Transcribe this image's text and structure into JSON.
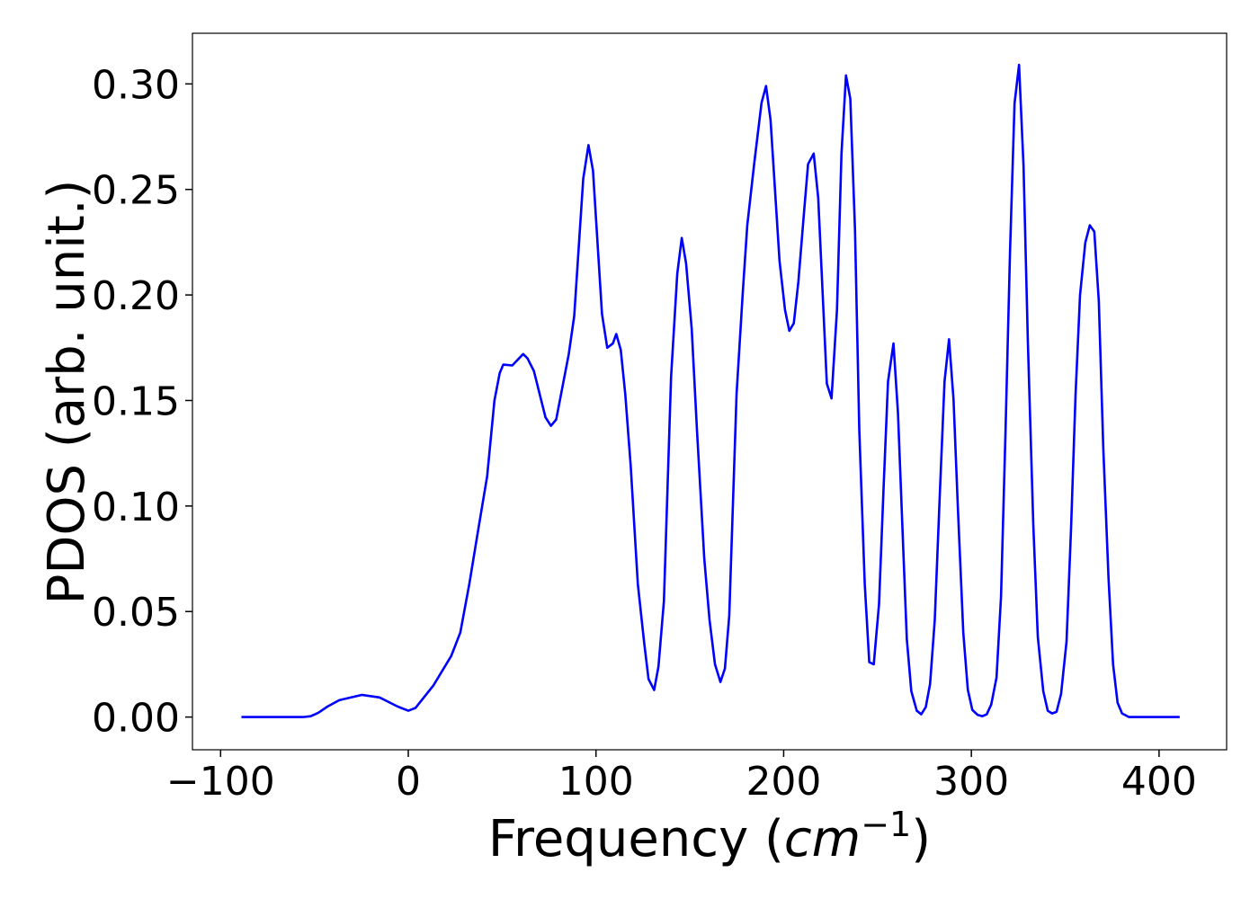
{
  "chart_data": {
    "type": "line",
    "x_label": {
      "text": "Frequency (",
      "unit": "cm",
      "exponent": "−1",
      "close": ")"
    },
    "y_label": "PDOS (arb. unit.)",
    "xlim": [
      -115,
      436
    ],
    "ylim": [
      -0.0155,
      0.324
    ],
    "xticks": [
      {
        "value": -100,
        "label": "−100"
      },
      0,
      100,
      200,
      300,
      400
    ],
    "yticks": [
      {
        "value": 0,
        "label": "0.00"
      },
      {
        "value": 0.05,
        "label": "0.05"
      },
      {
        "value": 0.1,
        "label": "0.10"
      },
      {
        "value": 0.15,
        "label": "0.15"
      },
      {
        "value": 0.2,
        "label": "0.20"
      },
      {
        "value": 0.25,
        "label": "0.25"
      },
      {
        "value": 0.3,
        "label": "0.30"
      }
    ],
    "grid": false,
    "series": [
      {
        "color": "#0000ff",
        "x": [
          -88.9,
          -56,
          -52,
          -48,
          -43,
          -36.8,
          -24.8,
          -15.3,
          -5.7,
          0,
          3.8,
          13.4,
          22.9,
          27.7,
          32.5,
          37.3,
          42,
          45.9,
          48.7,
          50.6,
          55.4,
          61.2,
          63.5,
          66.9,
          73.1,
          76,
          78.8,
          85.5,
          88.4,
          93.2,
          96,
          98.4,
          103.2,
          106,
          109,
          110.8,
          113.2,
          115.6,
          118.5,
          122.3,
          125.7,
          128,
          131,
          133.3,
          136.2,
          140,
          143.3,
          145.7,
          148,
          151,
          153.8,
          157.7,
          160.5,
          163.4,
          166.3,
          168.7,
          171,
          174.9,
          178.2,
          180.6,
          184.4,
          188.2,
          190.6,
          193,
          197.8,
          200.7,
          203,
          205.4,
          207.8,
          210.7,
          213,
          216,
          218.4,
          223,
          225.5,
          228.4,
          230.8,
          233.2,
          235.5,
          238,
          240.3,
          243.2,
          245.6,
          248,
          250.8,
          253.2,
          255.6,
          258.5,
          260.9,
          263.3,
          265.6,
          268,
          270.9,
          273.3,
          275.7,
          278,
          280.5,
          283.3,
          285.7,
          288.1,
          290.5,
          292.9,
          295.7,
          298.1,
          300.5,
          303.4,
          305.8,
          308.2,
          310.6,
          313.4,
          315.8,
          318.2,
          320.6,
          323,
          325.4,
          327.8,
          330.1,
          333,
          335.4,
          338.3,
          340.7,
          343,
          345.4,
          347.8,
          350.7,
          353.1,
          355.5,
          357.9,
          360.7,
          363.1,
          365.5,
          367.9,
          370.3,
          373.1,
          375.5,
          377.9,
          380.3,
          384,
          411
        ],
        "values": [
          0,
          0,
          0.0004,
          0.002,
          0.005,
          0.008,
          0.0105,
          0.0093,
          0.005,
          0.003,
          0.0043,
          0.015,
          0.029,
          0.04,
          0.063,
          0.089,
          0.114,
          0.15,
          0.163,
          0.167,
          0.1666,
          0.172,
          0.17,
          0.164,
          0.142,
          0.138,
          0.141,
          0.172,
          0.19,
          0.255,
          0.271,
          0.259,
          0.191,
          0.175,
          0.177,
          0.1815,
          0.174,
          0.153,
          0.119,
          0.063,
          0.035,
          0.018,
          0.0128,
          0.024,
          0.055,
          0.161,
          0.21,
          0.227,
          0.215,
          0.184,
          0.136,
          0.075,
          0.046,
          0.025,
          0.0166,
          0.023,
          0.048,
          0.153,
          0.201,
          0.233,
          0.263,
          0.291,
          0.299,
          0.283,
          0.216,
          0.193,
          0.183,
          0.1866,
          0.206,
          0.2376,
          0.262,
          0.267,
          0.246,
          0.158,
          0.151,
          0.193,
          0.267,
          0.304,
          0.293,
          0.231,
          0.1356,
          0.063,
          0.026,
          0.025,
          0.0535,
          0.108,
          0.159,
          0.177,
          0.144,
          0.089,
          0.037,
          0.0123,
          0.003,
          0.0013,
          0.0047,
          0.0157,
          0.046,
          0.108,
          0.159,
          0.179,
          0.1505,
          0.0973,
          0.04,
          0.013,
          0.0034,
          0.001,
          0.0004,
          0.0013,
          0.006,
          0.0187,
          0.057,
          0.1356,
          0.2206,
          0.2907,
          0.309,
          0.261,
          0.178,
          0.091,
          0.038,
          0.0123,
          0.003,
          0.0017,
          0.0025,
          0.011,
          0.0357,
          0.089,
          0.1526,
          0.2,
          0.2248,
          0.233,
          0.23,
          0.197,
          0.127,
          0.0654,
          0.025,
          0.0068,
          0.0017,
          0,
          0
        ]
      }
    ]
  }
}
